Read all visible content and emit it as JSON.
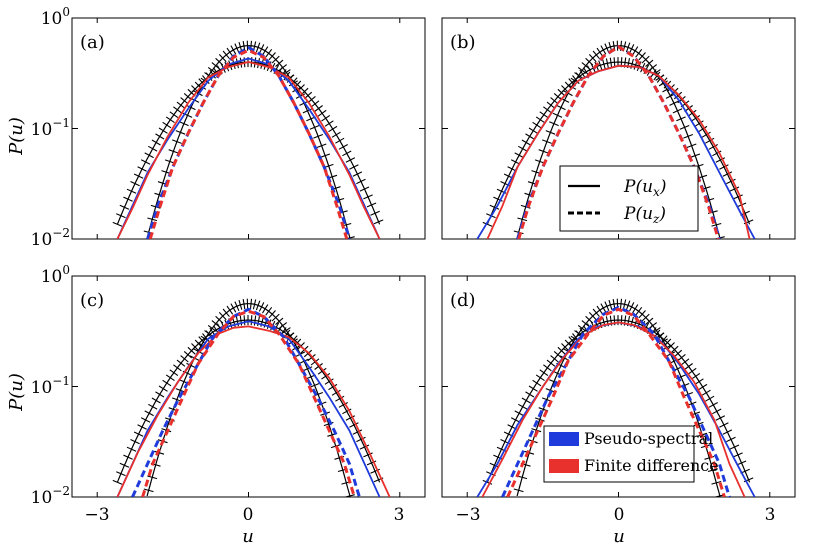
{
  "figure": {
    "ylabel": "P(u)",
    "xlabel": "u",
    "x_ticks": [
      "−3",
      "0",
      "3"
    ],
    "y_ticks": [
      {
        "base": "10",
        "exp": "0"
      },
      {
        "base": "10",
        "exp": "−1"
      },
      {
        "base": "10",
        "exp": "−2"
      }
    ],
    "style_legend": [
      {
        "label": "P(u",
        "sub": "x",
        "close": ")",
        "style": "solid"
      },
      {
        "label": "P(u",
        "sub": "z",
        "close": ")",
        "style": "dashed"
      }
    ],
    "color_legend": [
      {
        "label": "Pseudo-spectral",
        "color": "#1f3bdb"
      },
      {
        "label": "Finite difference",
        "color": "#e8302c"
      }
    ]
  },
  "chart_data": [
    {
      "panel": "(a)",
      "type": "line",
      "xlim": [
        -3.5,
        3.5
      ],
      "ylim": [
        0.01,
        1
      ],
      "yscale": "log",
      "series": [
        {
          "name": "Gaussian P(u_x)",
          "color": "#000000",
          "style": "hatched",
          "sigma": 1.0,
          "xmax": 2.6
        },
        {
          "name": "Gaussian P(u_z)",
          "color": "#000000",
          "style": "hatched",
          "sigma": 0.71,
          "xmax": 2.05
        },
        {
          "name": "Pseudo-spectral P(u_x)",
          "color": "#1f3bdb",
          "style": "solid",
          "x": [
            -2.6,
            -2.3,
            -2.0,
            -1.6,
            -1.2,
            -0.8,
            -0.4,
            0,
            0.4,
            0.8,
            1.2,
            1.6,
            2.0,
            2.3,
            2.6
          ],
          "y": [
            0.01,
            0.02,
            0.04,
            0.08,
            0.15,
            0.27,
            0.38,
            0.43,
            0.38,
            0.27,
            0.15,
            0.08,
            0.04,
            0.02,
            0.01
          ]
        },
        {
          "name": "Finite difference P(u_x)",
          "color": "#e8302c",
          "style": "solid",
          "x": [
            -2.6,
            -2.3,
            -2.0,
            -1.6,
            -1.2,
            -0.8,
            -0.4,
            0,
            0.4,
            0.8,
            1.2,
            1.6,
            2.0,
            2.3,
            2.6
          ],
          "y": [
            0.01,
            0.019,
            0.038,
            0.085,
            0.17,
            0.29,
            0.36,
            0.4,
            0.36,
            0.29,
            0.17,
            0.085,
            0.038,
            0.019,
            0.01
          ]
        },
        {
          "name": "Pseudo-spectral P(u_z)",
          "color": "#1f3bdb",
          "style": "dashed",
          "x": [
            -2.0,
            -1.8,
            -1.5,
            -1.2,
            -0.9,
            -0.6,
            -0.3,
            0,
            0.3,
            0.6,
            0.9,
            1.2,
            1.5,
            1.8,
            2.0
          ],
          "y": [
            0.01,
            0.02,
            0.045,
            0.09,
            0.17,
            0.3,
            0.45,
            0.54,
            0.45,
            0.3,
            0.17,
            0.09,
            0.045,
            0.02,
            0.01
          ]
        },
        {
          "name": "Finite difference P(u_z)",
          "color": "#e8302c",
          "style": "dashed",
          "x": [
            -1.95,
            -1.75,
            -1.5,
            -1.2,
            -0.9,
            -0.6,
            -0.3,
            0,
            0.3,
            0.6,
            0.9,
            1.2,
            1.5,
            1.75,
            1.95
          ],
          "y": [
            0.01,
            0.02,
            0.045,
            0.09,
            0.17,
            0.3,
            0.44,
            0.51,
            0.44,
            0.3,
            0.17,
            0.09,
            0.045,
            0.02,
            0.01
          ]
        }
      ]
    },
    {
      "panel": "(b)",
      "type": "line",
      "xlim": [
        -3.5,
        3.5
      ],
      "ylim": [
        0.01,
        1
      ],
      "yscale": "log",
      "series": [
        {
          "name": "Gaussian P(u_x)",
          "color": "#000000",
          "style": "hatched",
          "sigma": 1.0,
          "xmax": 2.6
        },
        {
          "name": "Gaussian P(u_z)",
          "color": "#000000",
          "style": "hatched",
          "sigma": 0.71,
          "xmax": 2.05
        },
        {
          "name": "Pseudo-spectral P(u_x)",
          "color": "#1f3bdb",
          "style": "solid",
          "x": [
            -2.8,
            -2.4,
            -2.0,
            -1.6,
            -1.2,
            -0.8,
            -0.4,
            0,
            0.4,
            0.8,
            1.2,
            1.6,
            2.0,
            2.4,
            2.7
          ],
          "y": [
            0.01,
            0.02,
            0.045,
            0.09,
            0.17,
            0.27,
            0.33,
            0.37,
            0.36,
            0.3,
            0.18,
            0.09,
            0.04,
            0.018,
            0.01
          ]
        },
        {
          "name": "Finite difference P(u_x)",
          "color": "#e8302c",
          "style": "solid",
          "x": [
            -2.6,
            -2.3,
            -2.0,
            -1.6,
            -1.2,
            -0.8,
            -0.4,
            0,
            0.4,
            0.8,
            1.2,
            1.6,
            2.0,
            2.4,
            2.6
          ],
          "y": [
            0.01,
            0.02,
            0.045,
            0.09,
            0.17,
            0.27,
            0.33,
            0.37,
            0.36,
            0.3,
            0.2,
            0.12,
            0.06,
            0.025,
            0.01
          ]
        },
        {
          "name": "Pseudo-spectral P(u_z)",
          "color": "#1f3bdb",
          "style": "dashed",
          "x": [
            -2.0,
            -1.8,
            -1.5,
            -1.2,
            -0.9,
            -0.6,
            -0.3,
            0,
            0.3,
            0.6,
            0.9,
            1.2,
            1.5,
            1.8,
            2.0
          ],
          "y": [
            0.01,
            0.02,
            0.045,
            0.09,
            0.17,
            0.3,
            0.45,
            0.55,
            0.45,
            0.3,
            0.17,
            0.09,
            0.045,
            0.02,
            0.01
          ]
        },
        {
          "name": "Finite difference P(u_z)",
          "color": "#e8302c",
          "style": "dashed",
          "x": [
            -1.98,
            -1.78,
            -1.5,
            -1.2,
            -0.9,
            -0.6,
            -0.3,
            0,
            0.3,
            0.6,
            0.9,
            1.2,
            1.5,
            1.78,
            1.98
          ],
          "y": [
            0.01,
            0.02,
            0.045,
            0.09,
            0.17,
            0.3,
            0.45,
            0.55,
            0.45,
            0.3,
            0.17,
            0.09,
            0.045,
            0.02,
            0.01
          ]
        }
      ]
    },
    {
      "panel": "(c)",
      "type": "line",
      "xlim": [
        -3.5,
        3.5
      ],
      "ylim": [
        0.01,
        1
      ],
      "yscale": "log",
      "series": [
        {
          "name": "Gaussian P(u_x)",
          "color": "#000000",
          "style": "hatched",
          "sigma": 1.0,
          "xmax": 2.6
        },
        {
          "name": "Gaussian P(u_z)",
          "color": "#000000",
          "style": "hatched",
          "sigma": 0.71,
          "xmax": 2.05
        },
        {
          "name": "Pseudo-spectral P(u_x)",
          "color": "#1f3bdb",
          "style": "solid",
          "x": [
            -2.6,
            -2.3,
            -2.0,
            -1.6,
            -1.2,
            -0.8,
            -0.4,
            0,
            0.4,
            0.8,
            1.2,
            1.6,
            2.0,
            2.3,
            2.6
          ],
          "y": [
            0.01,
            0.02,
            0.04,
            0.08,
            0.15,
            0.27,
            0.35,
            0.39,
            0.35,
            0.27,
            0.15,
            0.08,
            0.04,
            0.02,
            0.01
          ]
        },
        {
          "name": "Finite difference P(u_x)",
          "color": "#e8302c",
          "style": "solid",
          "x": [
            -2.6,
            -2.2,
            -1.8,
            -1.4,
            -1.0,
            -0.6,
            -0.3,
            0,
            0.4,
            0.8,
            1.2,
            1.6,
            2.0,
            2.4,
            2.8
          ],
          "y": [
            0.01,
            0.025,
            0.055,
            0.11,
            0.2,
            0.3,
            0.34,
            0.35,
            0.32,
            0.28,
            0.2,
            0.12,
            0.06,
            0.025,
            0.01
          ]
        },
        {
          "name": "Pseudo-spectral P(u_z)",
          "color": "#1f3bdb",
          "style": "dashed",
          "x": [
            -2.3,
            -2.0,
            -1.7,
            -1.4,
            -1.0,
            -0.7,
            -0.3,
            0,
            0.3,
            0.7,
            1.0,
            1.4,
            1.7,
            2.0,
            2.2
          ],
          "y": [
            0.01,
            0.02,
            0.04,
            0.075,
            0.16,
            0.28,
            0.43,
            0.5,
            0.43,
            0.28,
            0.16,
            0.075,
            0.04,
            0.02,
            0.01
          ]
        },
        {
          "name": "Finite difference P(u_z)",
          "color": "#e8302c",
          "style": "dashed",
          "x": [
            -2.1,
            -1.9,
            -1.6,
            -1.3,
            -1.0,
            -0.6,
            -0.3,
            0,
            0.3,
            0.6,
            1.0,
            1.3,
            1.6,
            1.9,
            2.1
          ],
          "y": [
            0.01,
            0.02,
            0.04,
            0.08,
            0.16,
            0.3,
            0.43,
            0.48,
            0.43,
            0.3,
            0.16,
            0.08,
            0.04,
            0.02,
            0.01
          ]
        }
      ]
    },
    {
      "panel": "(d)",
      "type": "line",
      "xlim": [
        -3.5,
        3.5
      ],
      "ylim": [
        0.01,
        1
      ],
      "yscale": "log",
      "series": [
        {
          "name": "Gaussian P(u_x)",
          "color": "#000000",
          "style": "hatched",
          "sigma": 1.0,
          "xmax": 2.6
        },
        {
          "name": "Gaussian P(u_z)",
          "color": "#000000",
          "style": "hatched",
          "sigma": 0.71,
          "xmax": 2.05
        },
        {
          "name": "Pseudo-spectral P(u_x)",
          "color": "#1f3bdb",
          "style": "solid",
          "x": [
            -2.8,
            -2.4,
            -2.0,
            -1.6,
            -1.2,
            -0.8,
            -0.4,
            0,
            0.4,
            0.8,
            1.2,
            1.6,
            2.0,
            2.4,
            2.7
          ],
          "y": [
            0.01,
            0.02,
            0.045,
            0.085,
            0.16,
            0.27,
            0.35,
            0.38,
            0.35,
            0.27,
            0.16,
            0.085,
            0.04,
            0.018,
            0.01
          ]
        },
        {
          "name": "Finite difference P(u_x)",
          "color": "#e8302c",
          "style": "solid",
          "x": [
            -2.7,
            -2.3,
            -1.9,
            -1.5,
            -1.1,
            -0.7,
            -0.3,
            0,
            0.3,
            0.7,
            1.1,
            1.5,
            1.9,
            2.2,
            2.5
          ],
          "y": [
            0.01,
            0.022,
            0.05,
            0.1,
            0.18,
            0.29,
            0.36,
            0.38,
            0.36,
            0.29,
            0.19,
            0.11,
            0.05,
            0.02,
            0.01
          ]
        },
        {
          "name": "Pseudo-spectral P(u_z)",
          "color": "#1f3bdb",
          "style": "dashed",
          "x": [
            -2.3,
            -2.0,
            -1.7,
            -1.4,
            -1.0,
            -0.7,
            -0.3,
            0,
            0.3,
            0.7,
            1.0,
            1.4,
            1.7,
            2.0,
            2.2
          ],
          "y": [
            0.01,
            0.02,
            0.04,
            0.08,
            0.17,
            0.3,
            0.45,
            0.52,
            0.45,
            0.3,
            0.17,
            0.08,
            0.04,
            0.02,
            0.01
          ]
        },
        {
          "name": "Finite difference P(u_z)",
          "color": "#e8302c",
          "style": "dashed",
          "x": [
            -2.2,
            -1.9,
            -1.6,
            -1.3,
            -1.0,
            -0.6,
            -0.3,
            0,
            0.3,
            0.6,
            1.0,
            1.3,
            1.6,
            1.9,
            2.1
          ],
          "y": [
            0.01,
            0.02,
            0.04,
            0.08,
            0.17,
            0.3,
            0.44,
            0.5,
            0.44,
            0.3,
            0.17,
            0.08,
            0.04,
            0.02,
            0.01
          ]
        }
      ]
    }
  ]
}
